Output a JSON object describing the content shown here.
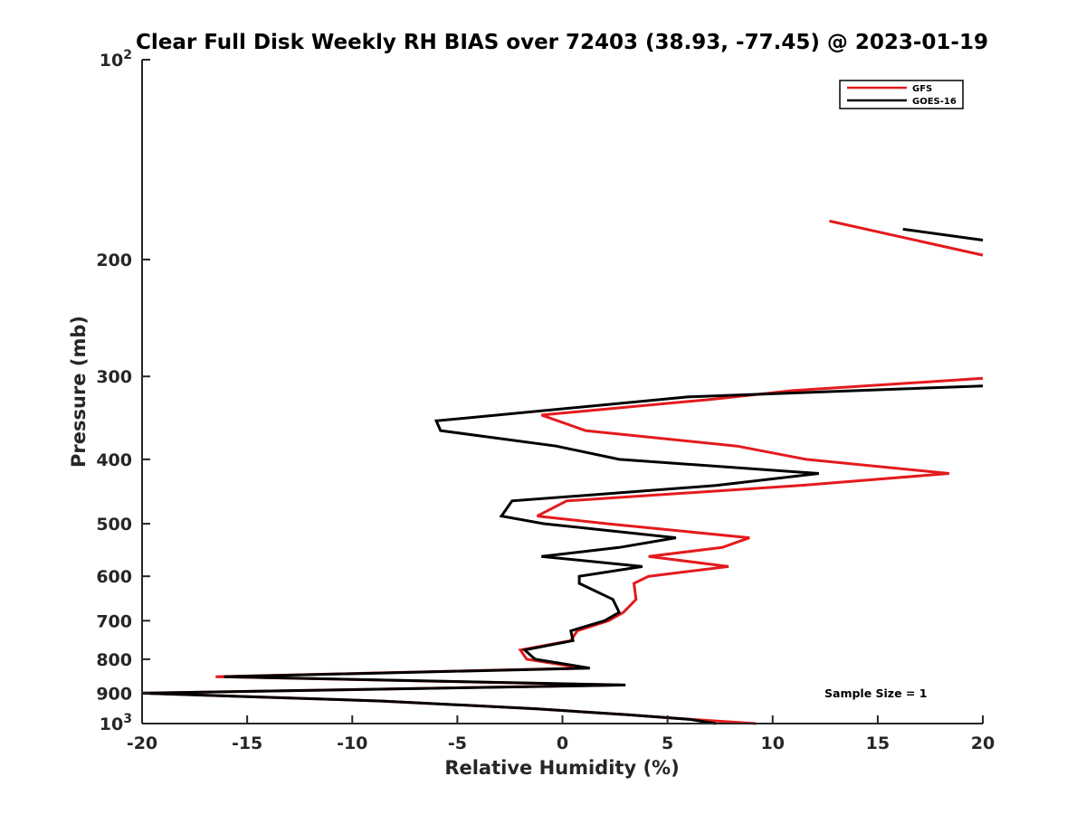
{
  "chart_data": {
    "type": "line",
    "title": "Clear Full Disk Weekly RH BIAS over 72403 (38.93, -77.45) @ 2023-01-19",
    "xlabel": "Relative Humidity (%)",
    "ylabel": "Pressure (mb)",
    "xlim": [
      -20,
      20
    ],
    "ylim": [
      100,
      1000
    ],
    "y_scale": "log",
    "y_reversed": true,
    "grid": false,
    "legend_position": "top-right",
    "xticks": [
      "-20",
      "-15",
      "-10",
      "-5",
      "0",
      "5",
      "10",
      "15",
      "20"
    ],
    "yticks": [
      {
        "base": "10",
        "exp": "2",
        "label": ""
      },
      {
        "label": "200"
      },
      {
        "label": "300"
      },
      {
        "label": "400"
      },
      {
        "label": "500"
      },
      {
        "label": "600"
      },
      {
        "label": "700"
      },
      {
        "label": "800"
      },
      {
        "label": "900"
      },
      {
        "base": "10",
        "exp": "3",
        "label": ""
      }
    ],
    "annotation": "Sample Size = 1",
    "series": [
      {
        "name": "GFS",
        "color": "#e41a1c",
        "segments": [
          [
            [
              12.7,
              175
            ],
            [
              20,
              197
            ]
          ],
          [
            [
              20,
              302
            ],
            [
              11.0,
              315
            ],
            [
              7.0,
              325
            ],
            [
              -1.0,
              343
            ],
            [
              1.1,
              362
            ],
            [
              8.3,
              382
            ],
            [
              11.6,
              400
            ],
            [
              18.4,
              420
            ],
            [
              11.3,
              438
            ],
            [
              0.2,
              462
            ],
            [
              -1.2,
              487
            ],
            [
              2.1,
              500
            ],
            [
              8.9,
              525
            ],
            [
              7.6,
              543
            ],
            [
              4.1,
              560
            ],
            [
              7.9,
              580
            ],
            [
              4.1,
              600
            ],
            [
              3.4,
              615
            ],
            [
              3.5,
              650
            ],
            [
              2.9,
              680
            ],
            [
              2.2,
              700
            ],
            [
              0.7,
              725
            ],
            [
              0.4,
              750
            ],
            [
              -2.0,
              775
            ],
            [
              -1.7,
              800
            ],
            [
              1.0,
              825
            ],
            [
              -16.5,
              850
            ],
            [
              2.8,
              875
            ],
            [
              -20,
              900
            ],
            [
              -8.6,
              925
            ],
            [
              -1.3,
              950
            ],
            [
              3.1,
              970
            ],
            [
              6.0,
              985
            ],
            [
              9.2,
              1000
            ]
          ]
        ]
      },
      {
        "name": "GOES-16",
        "color": "#000000",
        "segments": [
          [
            [
              16.2,
              180
            ],
            [
              20,
              187
            ]
          ],
          [
            [
              20,
              310
            ],
            [
              6.0,
              322
            ],
            [
              -6.0,
              350
            ],
            [
              -5.8,
              362
            ],
            [
              -0.3,
              382
            ],
            [
              2.7,
              400
            ],
            [
              12.2,
              420
            ],
            [
              7.3,
              438
            ],
            [
              -2.4,
              462
            ],
            [
              -2.9,
              487
            ],
            [
              -0.9,
              500
            ],
            [
              5.4,
              525
            ],
            [
              2.7,
              543
            ],
            [
              -1.0,
              560
            ],
            [
              3.8,
              580
            ],
            [
              0.8,
              600
            ],
            [
              0.8,
              615
            ],
            [
              2.4,
              650
            ],
            [
              2.7,
              680
            ],
            [
              2.0,
              700
            ],
            [
              0.4,
              725
            ],
            [
              0.5,
              750
            ],
            [
              -1.8,
              775
            ],
            [
              -1.3,
              800
            ],
            [
              1.3,
              825
            ],
            [
              -16.1,
              850
            ],
            [
              3.0,
              875
            ],
            [
              -20,
              900
            ],
            [
              -8.6,
              925
            ],
            [
              -1.3,
              950
            ],
            [
              3.1,
              970
            ],
            [
              6.0,
              985
            ],
            [
              7.3,
              1000
            ]
          ]
        ]
      }
    ]
  }
}
